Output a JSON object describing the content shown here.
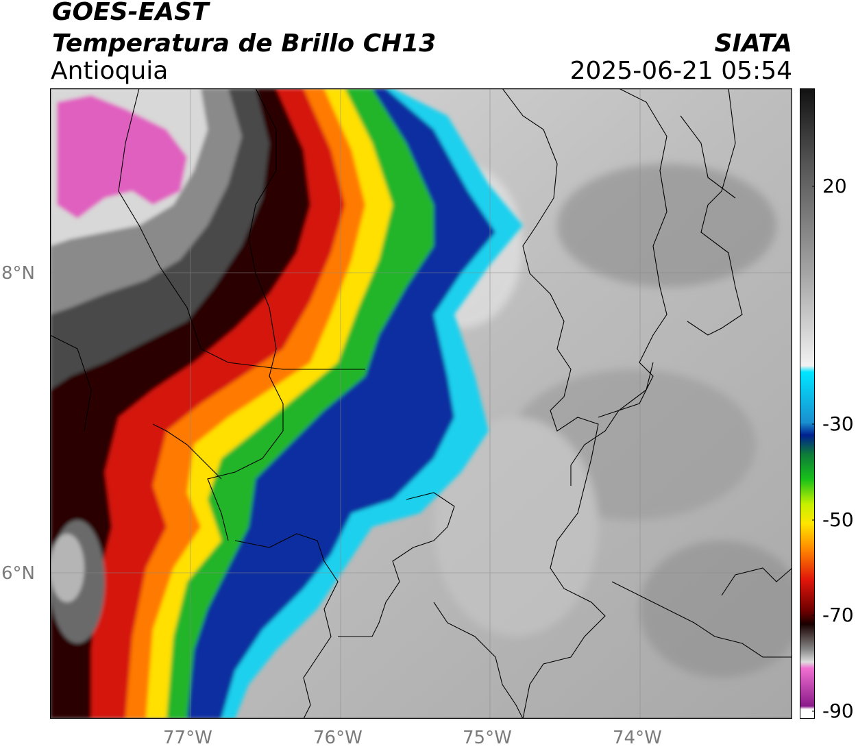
{
  "header": {
    "satellite": "GOES-EAST",
    "product": "Temperatura de Brillo CH13",
    "region": "Antioquia",
    "organization": "SIATA",
    "datetime": "2025-06-21 05:54"
  },
  "axes": {
    "lat_labels": [
      "8°N",
      "6°N"
    ],
    "lon_labels": [
      "77°W",
      "76°W",
      "75°W",
      "74°W"
    ]
  },
  "colorbar": {
    "tick_labels": [
      "20",
      "-30",
      "-50",
      "-70",
      "-90"
    ],
    "colors": {
      "warm_gray_dark": "#1a1a1a",
      "warm_gray_light": "#f2f2f2",
      "cyan": "#00e5ff",
      "blue": "#00208f",
      "green": "#18c01a",
      "yellow": "#ffe600",
      "orange": "#ff8a00",
      "red": "#e0150b",
      "darkred": "#3a0000",
      "pink": "#e060c0",
      "purple": "#8a1a8a"
    }
  }
}
